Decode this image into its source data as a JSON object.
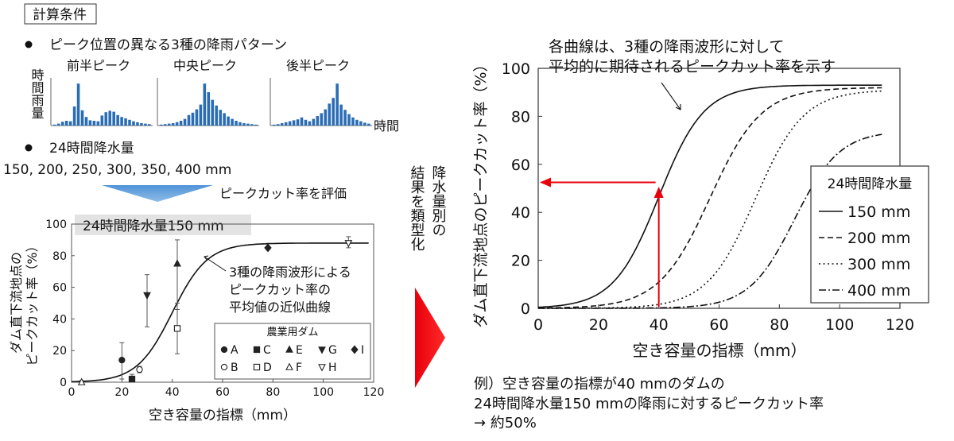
{
  "conditions": {
    "title": "計算条件",
    "bullet1": "ピーク位置の異なる3種の降雨パターン",
    "patterns": [
      {
        "name": "前半ピーク",
        "values": [
          2,
          4,
          8,
          10,
          9,
          40,
          88,
          32,
          18,
          11,
          10,
          9,
          21,
          28,
          31,
          29,
          22,
          18,
          15,
          12,
          9,
          7,
          5,
          4,
          3
        ]
      },
      {
        "name": "中央ピーク",
        "values": [
          2,
          3,
          4,
          5,
          7,
          10,
          14,
          22,
          27,
          34,
          44,
          88,
          70,
          54,
          42,
          33,
          26,
          19,
          14,
          10,
          7,
          5,
          4,
          3,
          2
        ]
      },
      {
        "name": "後半ピーク",
        "values": [
          2,
          3,
          5,
          7,
          9,
          11,
          13,
          17,
          12,
          9,
          14,
          20,
          26,
          34,
          46,
          58,
          88,
          44,
          33,
          24,
          17,
          12,
          9,
          6,
          4
        ]
      }
    ],
    "ylabel": "時間雨量",
    "xlabel": "時間",
    "bullet2": "24時間降水量",
    "amounts": "150, 200, 250, 300, 350, 400 mm",
    "evaluate": "ピークカット率を評価"
  },
  "middle_label": [
    "降水量別の",
    "結果を類型化"
  ],
  "chart_data": [
    {
      "type": "scatter",
      "title": "24時間降水量150 mm",
      "xlabel": "空き容量の指標（mm）",
      "ylabel": [
        "ダム直下流地点の",
        "ピークカット率（%）"
      ],
      "xlim": [
        0,
        120
      ],
      "ylim": [
        0,
        100
      ],
      "xticks": [
        0,
        20,
        40,
        60,
        80,
        100,
        120
      ],
      "yticks": [
        0,
        20,
        40,
        60,
        80,
        100
      ],
      "legend_title": "農業用ダム",
      "dams": [
        {
          "name": "A",
          "marker": "circle",
          "filled": true,
          "x": 20,
          "y": 14,
          "err": [
            2,
            25
          ]
        },
        {
          "name": "B",
          "marker": "circle",
          "filled": false,
          "x": 27,
          "y": 8,
          "err": [
            6,
            10
          ]
        },
        {
          "name": "C",
          "marker": "square",
          "filled": true,
          "x": 24,
          "y": 2,
          "err": [
            1,
            5
          ]
        },
        {
          "name": "D",
          "marker": "square",
          "filled": false,
          "x": 42,
          "y": 34,
          "err": [
            18,
            50
          ]
        },
        {
          "name": "E",
          "marker": "triangle-up",
          "filled": true,
          "x": 42,
          "y": 75,
          "err": [
            46,
            90
          ]
        },
        {
          "name": "F",
          "marker": "triangle-up",
          "filled": false,
          "x": 4,
          "y": 0,
          "err": [
            0,
            1
          ]
        },
        {
          "name": "G",
          "marker": "triangle-down",
          "filled": true,
          "x": 30,
          "y": 55,
          "err": [
            35,
            68
          ]
        },
        {
          "name": "H",
          "marker": "triangle-down",
          "filled": false,
          "x": 110,
          "y": 88,
          "err": [
            85,
            92
          ]
        },
        {
          "name": "I",
          "marker": "diamond",
          "filled": true,
          "x": 78,
          "y": 85,
          "err": [
            84,
            86
          ]
        }
      ],
      "curve": {
        "max": 88,
        "mid": 40,
        "scale": 7
      },
      "annotation": [
        "3種の降雨波形による",
        "ピークカット率の",
        "平均値の近似曲線"
      ]
    },
    {
      "type": "line",
      "xlabel": "空き容量の指標（mm）",
      "ylabel": "ダム直下流地点のピークカット率（%）",
      "xlim": [
        0,
        120
      ],
      "ylim": [
        0,
        100
      ],
      "xticks": [
        0,
        20,
        40,
        60,
        80,
        100,
        120
      ],
      "yticks": [
        0,
        20,
        40,
        60,
        80,
        100
      ],
      "legend_title": "24時間降水量",
      "series": [
        {
          "name": "150 mm",
          "dash": "solid",
          "max": 93,
          "mid": 40,
          "scale": 7.5
        },
        {
          "name": "200 mm",
          "dash": "dashed",
          "max": 92,
          "mid": 57,
          "scale": 8.5
        },
        {
          "name": "300 mm",
          "dash": "dotted",
          "max": 91,
          "mid": 72,
          "scale": 8
        },
        {
          "name": "400 mm",
          "dash": "dashdot",
          "max": 74,
          "mid": 85,
          "scale": 7.5
        }
      ],
      "annotation": [
        "各曲線は、3種の降雨波形に対して",
        "平均的に期待されるピークカット率を示す"
      ],
      "example": {
        "x": 40,
        "y": 50
      }
    }
  ],
  "example_text": [
    "例）空き容量の指標が40 mmのダムの",
    "24時間降水量150 mmの降雨に対するピークカット率",
    "→ 約50%"
  ],
  "colors": {
    "bar": "#2a6db5",
    "arrow_blue": "#5b9bd5",
    "arrow_red": "#e8000b"
  }
}
